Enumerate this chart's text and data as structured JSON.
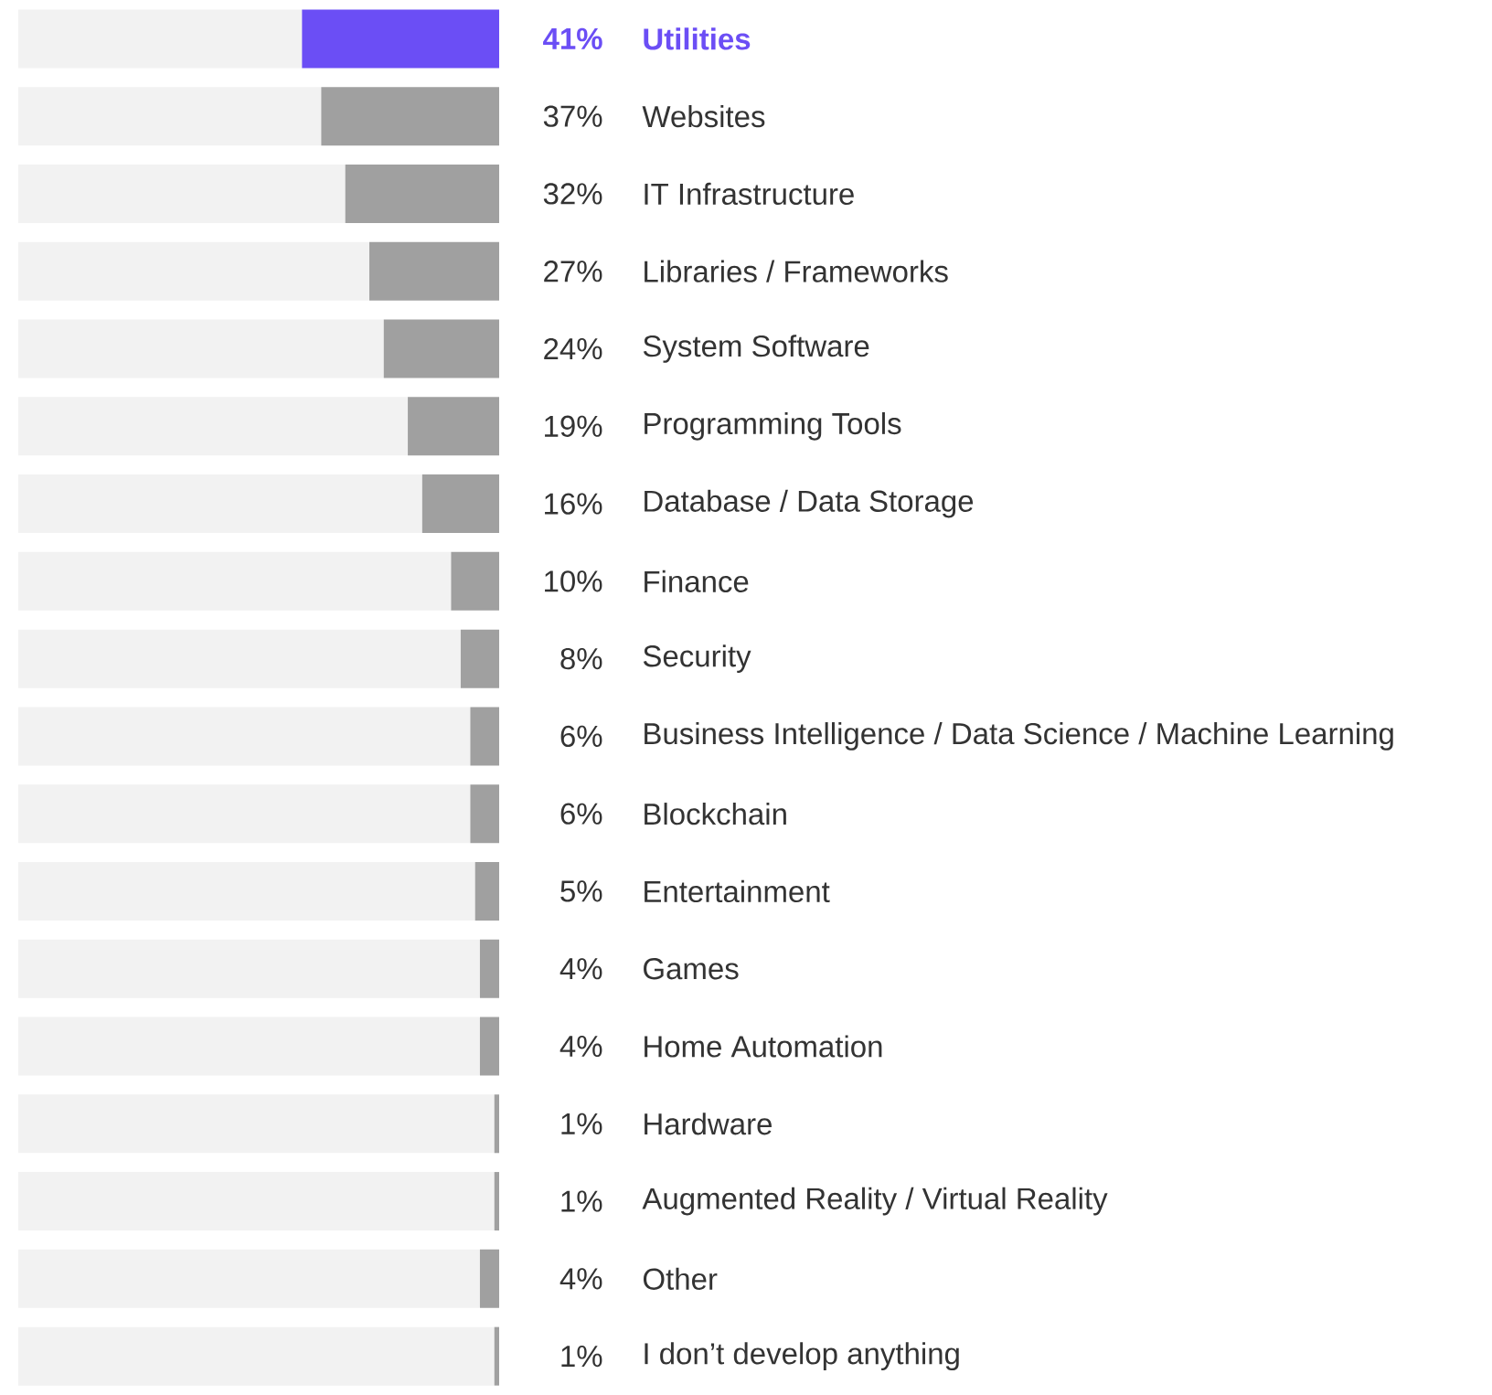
{
  "chart_data": {
    "type": "bar",
    "orientation": "horizontal",
    "stacked": true,
    "xlim": [
      100,
      0
    ],
    "tick_labels": false,
    "categories": [
      "Utilities",
      "Websites",
      "IT Infrastructure",
      "Libraries / Frameworks",
      "System Software",
      "Programming Tools",
      "Database / Data Storage",
      "Finance",
      "Security",
      "Business Intelligence / Data Science / Machine Learning",
      "Blockchain",
      "Entertainment",
      "Games",
      "Home Automation",
      "Hardware",
      "Augmented Reality / Virtual Reality",
      "Other",
      "I don’t develop anything"
    ],
    "series": [
      {
        "values": [
          41,
          37,
          32,
          27,
          24,
          19,
          16,
          10,
          8,
          6,
          6,
          5,
          4,
          4,
          1,
          1,
          4,
          1
        ],
        "colors": [
          "#6b4ef5",
          "#a0a0a0",
          "#a0a0a0",
          "#a0a0a0",
          "#a0a0a0",
          "#a0a0a0",
          "#a0a0a0",
          "#a0a0a0",
          "#a0a0a0",
          "#a0a0a0",
          "#a0a0a0",
          "#a0a0a0",
          "#a0a0a0",
          "#a0a0a0",
          "#a0a0a0",
          "#a0a0a0",
          "#a0a0a0",
          "#a0a0a0"
        ],
        "value_labels": [
          "41%",
          "37%",
          "32%",
          "27%",
          "24%",
          "19%",
          "16%",
          "10%",
          "8%",
          "6%",
          "6%",
          "5%",
          "4%",
          "4%",
          "1%",
          "1%",
          "4%",
          "1%"
        ]
      },
      {
        "color": "#f2f2f2",
        "values": [
          59,
          63,
          68,
          73,
          76,
          81,
          84,
          90,
          92,
          94,
          94,
          95,
          96,
          96,
          99,
          99,
          96,
          99
        ]
      }
    ]
  }
}
